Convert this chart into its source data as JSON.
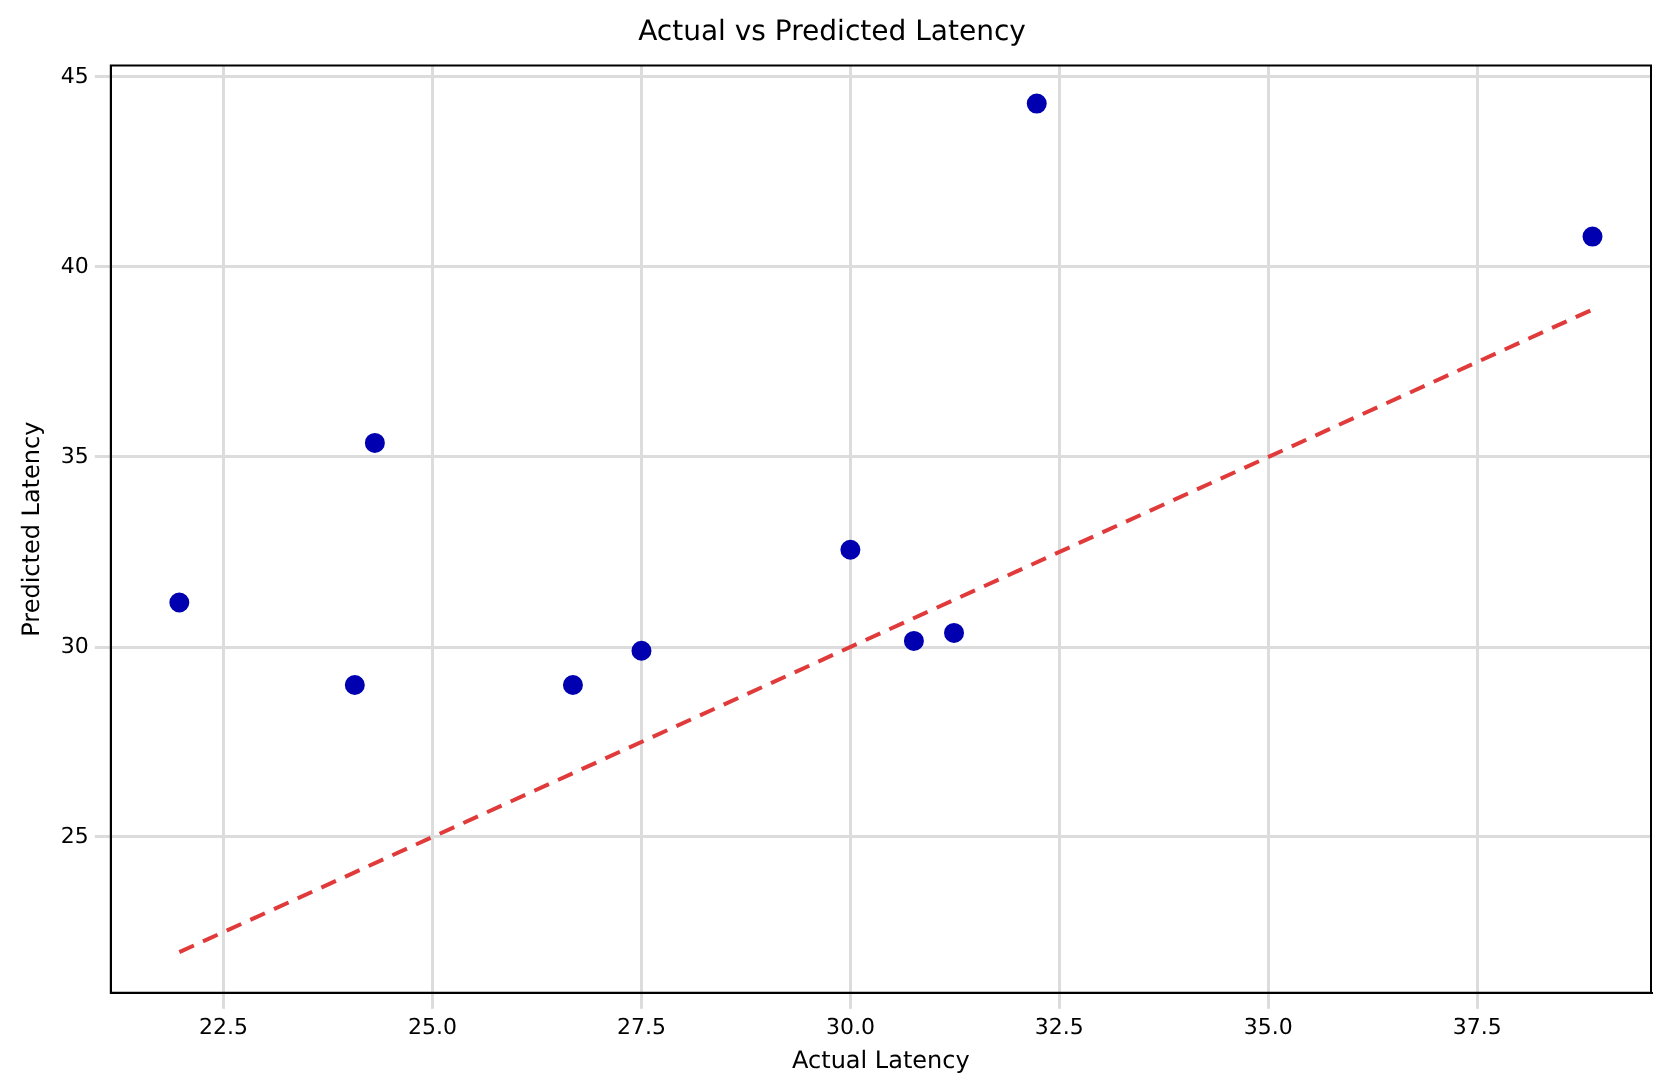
{
  "chart_data": {
    "type": "scatter",
    "title": "Actual vs Predicted Latency",
    "xlabel": "Actual Latency",
    "ylabel": "Predicted Latency",
    "x": [
      21.97,
      24.07,
      24.31,
      26.68,
      27.5,
      30.0,
      30.76,
      31.24,
      32.23,
      38.88
    ],
    "series": [
      {
        "type": "scatter",
        "color": "#0000b0",
        "marker": "circle",
        "values": [
          31.17,
          29.0,
          35.37,
          29.0,
          29.9,
          32.56,
          30.16,
          30.37,
          44.3,
          40.8
        ]
      },
      {
        "type": "line",
        "color": "#e03a3a",
        "line_style": "dashed",
        "marker": "none",
        "x": [
          21.97,
          38.88
        ],
        "values": [
          21.97,
          38.88
        ]
      }
    ],
    "xlim": [
      21.15,
      39.58
    ],
    "ylim": [
      20.9,
      45.3
    ],
    "xticks": [
      {
        "value": 22.5,
        "label": "22.5"
      },
      {
        "value": 25,
        "label": "25.0"
      },
      {
        "value": 27.5,
        "label": "27.5"
      },
      {
        "value": 30,
        "label": "30.0"
      },
      {
        "value": 32.5,
        "label": "32.5"
      },
      {
        "value": 35,
        "label": "35.0"
      },
      {
        "value": 37.5,
        "label": "37.5"
      }
    ],
    "yticks": [
      25,
      30,
      35,
      40,
      45
    ],
    "grid": true,
    "legend": false
  }
}
